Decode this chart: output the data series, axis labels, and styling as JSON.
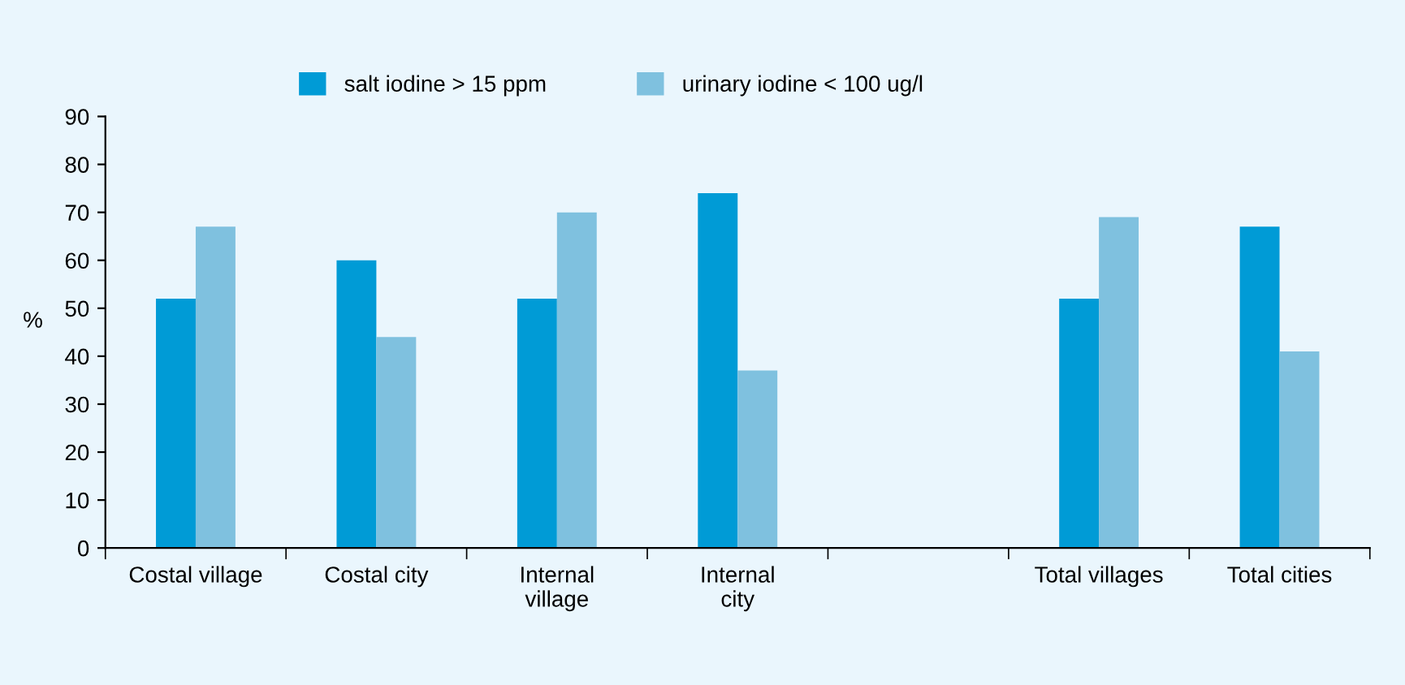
{
  "chart_data": {
    "type": "bar",
    "ylabel": "%",
    "categories": [
      "Costal village",
      "Costal city",
      "Internal\nvillage",
      "Internal\ncity",
      null,
      "Total villages",
      "Total cities"
    ],
    "series": [
      {
        "name": "salt iodine > 15 ppm",
        "color": "#009bd6",
        "values": [
          52,
          60,
          52,
          74,
          null,
          52,
          67
        ]
      },
      {
        "name": "urinary iodine < 100 ug/l",
        "color": "#7fc1df",
        "values": [
          67,
          44,
          70,
          37,
          null,
          69,
          41
        ]
      }
    ],
    "ylim": [
      0,
      90
    ],
    "yticks": [
      0,
      10,
      20,
      30,
      40,
      50,
      60,
      70,
      80,
      90
    ],
    "grid": false,
    "legend": "top"
  }
}
